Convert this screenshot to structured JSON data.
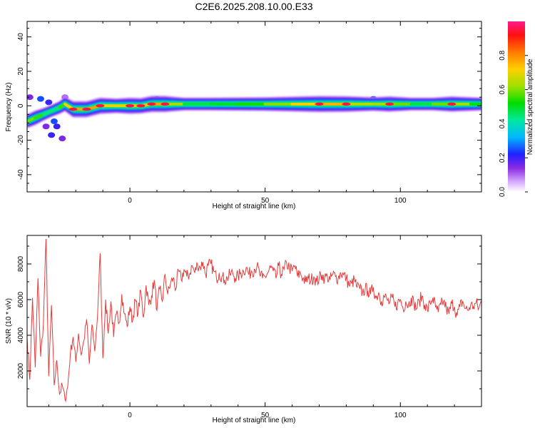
{
  "title": "C2E6.2025.208.10.00.E33",
  "chart_data": [
    {
      "type": "heatmap",
      "xlabel": "Height of straight line (km)",
      "ylabel": "Frequency (Hz)",
      "xlim": [
        -38,
        130
      ],
      "ylim": [
        -50,
        49
      ],
      "xticks": [
        0,
        50,
        100
      ],
      "yticks": [
        -40,
        -20,
        0,
        20,
        40
      ],
      "colorbar": {
        "label": "Normalized spectral amplitude",
        "range": [
          0,
          1
        ],
        "ticks": [
          0.0,
          0.2,
          0.4,
          0.6,
          0.8
        ],
        "tick_labels": [
          "0.0",
          "0.2",
          "0.4",
          "0.6",
          "0.8"
        ]
      },
      "ridge": [
        {
          "x": -38,
          "y": -9,
          "a": 0.6
        },
        {
          "x": -35,
          "y": -7,
          "a": 0.7
        },
        {
          "x": -32,
          "y": -5,
          "a": 0.5
        },
        {
          "x": -29,
          "y": -3,
          "a": 0.4
        },
        {
          "x": -26,
          "y": -1,
          "a": 0.5
        },
        {
          "x": -24,
          "y": 1,
          "a": 0.7
        },
        {
          "x": -21,
          "y": -2,
          "a": 0.9
        },
        {
          "x": -16,
          "y": -2,
          "a": 0.9
        },
        {
          "x": -11,
          "y": 0,
          "a": 0.9
        },
        {
          "x": -5,
          "y": 0,
          "a": 0.7
        },
        {
          "x": 0,
          "y": 0,
          "a": 0.9
        },
        {
          "x": 4,
          "y": 0,
          "a": 0.8
        },
        {
          "x": 8,
          "y": 1,
          "a": 0.9
        },
        {
          "x": 13,
          "y": 1,
          "a": 0.9
        },
        {
          "x": 20,
          "y": 1,
          "a": 0.5
        },
        {
          "x": 30,
          "y": 1,
          "a": 0.5
        },
        {
          "x": 40,
          "y": 1,
          "a": 0.55
        },
        {
          "x": 50,
          "y": 1,
          "a": 0.6
        },
        {
          "x": 60,
          "y": 1,
          "a": 0.75
        },
        {
          "x": 70,
          "y": 1,
          "a": 0.9
        },
        {
          "x": 80,
          "y": 1,
          "a": 0.85
        },
        {
          "x": 90,
          "y": 1,
          "a": 0.6
        },
        {
          "x": 96,
          "y": 1,
          "a": 0.8
        },
        {
          "x": 104,
          "y": 1,
          "a": 0.5
        },
        {
          "x": 112,
          "y": 1,
          "a": 0.5
        },
        {
          "x": 119,
          "y": 1,
          "a": 0.8
        },
        {
          "x": 126,
          "y": 1,
          "a": 0.6
        },
        {
          "x": 130,
          "y": 1,
          "a": 0.5
        }
      ],
      "patches": [
        {
          "x": -37,
          "y": 5,
          "a": 0.15
        },
        {
          "x": -33,
          "y": 4,
          "a": 0.25
        },
        {
          "x": -30,
          "y": 2,
          "a": 0.2
        },
        {
          "x": -28,
          "y": -9,
          "a": 0.25
        },
        {
          "x": -27,
          "y": -12,
          "a": 0.2
        },
        {
          "x": -29,
          "y": -17,
          "a": 0.2
        },
        {
          "x": -25,
          "y": -19,
          "a": 0.15
        },
        {
          "x": -31,
          "y": -12,
          "a": 0.15
        },
        {
          "x": -24,
          "y": 5,
          "a": 0.1
        },
        {
          "x": 10,
          "y": 4,
          "a": 0.2
        },
        {
          "x": 90,
          "y": 4,
          "a": 0.25
        }
      ]
    },
    {
      "type": "line",
      "xlabel": "Height of straight line (km)",
      "ylabel": "SNR (10 * v/v)",
      "xlim": [
        -38,
        130
      ],
      "ylim": [
        0,
        9600
      ],
      "xticks": [
        0,
        50,
        100
      ],
      "yticks": [
        2000,
        4000,
        6000,
        8000
      ],
      "series": [
        {
          "color": "#e83a3a",
          "x": [
            -38,
            -37,
            -36,
            -35,
            -34,
            -33,
            -32,
            -31,
            -30,
            -29,
            -28,
            -27,
            -26,
            -25,
            -24,
            -23,
            -22,
            -21,
            -20,
            -19,
            -18,
            -17,
            -16,
            -15,
            -14,
            -13,
            -12,
            -11,
            -10,
            -9,
            -8,
            -7,
            -6,
            -5,
            -4,
            -3,
            -2,
            -1,
            0,
            1,
            2,
            3,
            4,
            5,
            6,
            7,
            8,
            9,
            10,
            11,
            12,
            13,
            14,
            15,
            16,
            17,
            18,
            19,
            20,
            21,
            22,
            23,
            24,
            25,
            26,
            27,
            28,
            29,
            30,
            31,
            32,
            33,
            34,
            35,
            36,
            37,
            38,
            39,
            40,
            41,
            42,
            43,
            44,
            45,
            46,
            47,
            48,
            49,
            50,
            51,
            52,
            53,
            54,
            55,
            56,
            57,
            58,
            59,
            60,
            61,
            62,
            63,
            64,
            65,
            66,
            67,
            68,
            69,
            70,
            71,
            72,
            73,
            74,
            75,
            76,
            77,
            78,
            79,
            80,
            81,
            82,
            83,
            84,
            85,
            86,
            87,
            88,
            89,
            90,
            91,
            92,
            93,
            94,
            95,
            96,
            97,
            98,
            99,
            100,
            101,
            102,
            103,
            104,
            105,
            106,
            107,
            108,
            109,
            110,
            111,
            112,
            113,
            114,
            115,
            116,
            117,
            118,
            119,
            120,
            121,
            122,
            123,
            124,
            125,
            126,
            127,
            128,
            129,
            130
          ],
          "y": [
            3900,
            1500,
            6100,
            2200,
            7200,
            2800,
            4600,
            9400,
            1700,
            5700,
            1200,
            2600,
            700,
            1200,
            400,
            1100,
            3000,
            3900,
            2500,
            4100,
            2900,
            3700,
            4900,
            2400,
            4600,
            3100,
            5000,
            8600,
            2700,
            6000,
            4100,
            5900,
            3900,
            5200,
            4700,
            6300,
            5200,
            4500,
            5600,
            4800,
            6000,
            5200,
            6500,
            5000,
            6800,
            5700,
            6200,
            7100,
            5400,
            6600,
            5900,
            7400,
            6300,
            6900,
            7200,
            6600,
            7600,
            7100,
            7700,
            7300,
            7400,
            7900,
            7500,
            8000,
            7800,
            8100,
            7400,
            7900,
            8000,
            7600,
            7200,
            7500,
            7300,
            7100,
            7200,
            7400,
            7500,
            7200,
            7300,
            7500,
            7600,
            7800,
            7400,
            7600,
            7700,
            7900,
            7400,
            7200,
            7300,
            7500,
            7800,
            7600,
            7200,
            7900,
            7400,
            7700,
            8000,
            7800,
            7600,
            7900,
            7300,
            7500,
            7200,
            7000,
            7200,
            7100,
            7300,
            7000,
            7200,
            7400,
            7200,
            7300,
            7100,
            7400,
            7300,
            7200,
            7500,
            7400,
            7200,
            6800,
            6900,
            7100,
            6700,
            6600,
            6400,
            6600,
            6500,
            6300,
            6700,
            6100,
            6400,
            5900,
            6200,
            6000,
            5800,
            6100,
            5600,
            5800,
            6000,
            5500,
            5900,
            5700,
            6100,
            5800,
            5500,
            5900,
            6200,
            5700,
            5400,
            5800,
            6100,
            5600,
            5300,
            5700,
            5900,
            5500,
            5200,
            5800,
            5600,
            5100,
            5600,
            5900,
            5500,
            5400,
            5700,
            5600,
            5800,
            5500,
            5900
          ]
        }
      ]
    }
  ]
}
